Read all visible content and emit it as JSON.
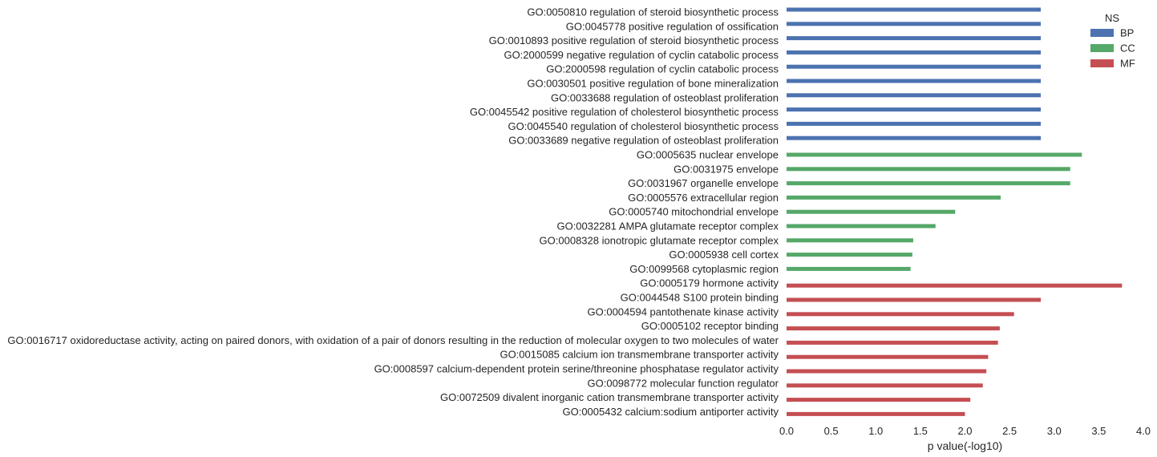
{
  "chart_data": {
    "type": "bar",
    "orientation": "horizontal",
    "xlabel": "p value(-log10)",
    "xlim": [
      0.0,
      4.0
    ],
    "xticks": [
      "0.0",
      "0.5",
      "1.0",
      "1.5",
      "2.0",
      "2.5",
      "3.0",
      "3.5",
      "4.0"
    ],
    "grid": false,
    "legend_title": "NS",
    "legend_position": "top-right",
    "series": [
      {
        "name": "BP",
        "color": "#4c72b0"
      },
      {
        "name": "CC",
        "color": "#55a868"
      },
      {
        "name": "MF",
        "color": "#c44e52"
      }
    ],
    "categories": [
      {
        "label": "GO:0050810 regulation of steroid biosynthetic process",
        "series": "BP",
        "value": 2.85
      },
      {
        "label": "GO:0045778 positive regulation of ossification",
        "series": "BP",
        "value": 2.85
      },
      {
        "label": "GO:0010893 positive regulation of steroid biosynthetic process",
        "series": "BP",
        "value": 2.85
      },
      {
        "label": "GO:2000599 negative regulation of cyclin catabolic process",
        "series": "BP",
        "value": 2.85
      },
      {
        "label": "GO:2000598 regulation of cyclin catabolic process",
        "series": "BP",
        "value": 2.85
      },
      {
        "label": "GO:0030501 positive regulation of bone mineralization",
        "series": "BP",
        "value": 2.85
      },
      {
        "label": "GO:0033688 regulation of osteoblast proliferation",
        "series": "BP",
        "value": 2.85
      },
      {
        "label": "GO:0045542 positive regulation of cholesterol biosynthetic process",
        "series": "BP",
        "value": 2.85
      },
      {
        "label": "GO:0045540 regulation of cholesterol biosynthetic process",
        "series": "BP",
        "value": 2.85
      },
      {
        "label": "GO:0033689 negative regulation of osteoblast proliferation",
        "series": "BP",
        "value": 2.85
      },
      {
        "label": "GO:0005635 nuclear envelope",
        "series": "CC",
        "value": 3.31
      },
      {
        "label": "GO:0031975 envelope",
        "series": "CC",
        "value": 3.18
      },
      {
        "label": "GO:0031967 organelle envelope",
        "series": "CC",
        "value": 3.18
      },
      {
        "label": "GO:0005576 extracellular region",
        "series": "CC",
        "value": 2.4
      },
      {
        "label": "GO:0005740 mitochondrial envelope",
        "series": "CC",
        "value": 1.89
      },
      {
        "label": "GO:0032281 AMPA glutamate receptor complex",
        "series": "CC",
        "value": 1.67
      },
      {
        "label": "GO:0008328 ionotropic glutamate receptor complex",
        "series": "CC",
        "value": 1.42
      },
      {
        "label": "GO:0005938 cell cortex",
        "series": "CC",
        "value": 1.41
      },
      {
        "label": "GO:0099568 cytoplasmic region",
        "series": "CC",
        "value": 1.39
      },
      {
        "label": "GO:0005179 hormone activity",
        "series": "MF",
        "value": 3.76
      },
      {
        "label": "GO:0044548 S100 protein binding",
        "series": "MF",
        "value": 2.85
      },
      {
        "label": "GO:0004594 pantothenate kinase activity",
        "series": "MF",
        "value": 2.55
      },
      {
        "label": "GO:0005102 receptor binding",
        "series": "MF",
        "value": 2.39
      },
      {
        "label": "GO:0016717 oxidoreductase activity, acting on paired donors, with oxidation of a pair of donors resulting in the reduction of molecular oxygen to two molecules of water",
        "series": "MF",
        "value": 2.37
      },
      {
        "label": "GO:0015085 calcium ion transmembrane transporter activity",
        "series": "MF",
        "value": 2.26
      },
      {
        "label": "GO:0008597 calcium-dependent protein serine/threonine phosphatase regulator activity",
        "series": "MF",
        "value": 2.24
      },
      {
        "label": "GO:0098772 molecular function regulator",
        "series": "MF",
        "value": 2.2
      },
      {
        "label": "GO:0072509 divalent inorganic cation transmembrane transporter activity",
        "series": "MF",
        "value": 2.06
      },
      {
        "label": "GO:0005432 calcium:sodium antiporter activity",
        "series": "MF",
        "value": 2.0
      }
    ]
  }
}
